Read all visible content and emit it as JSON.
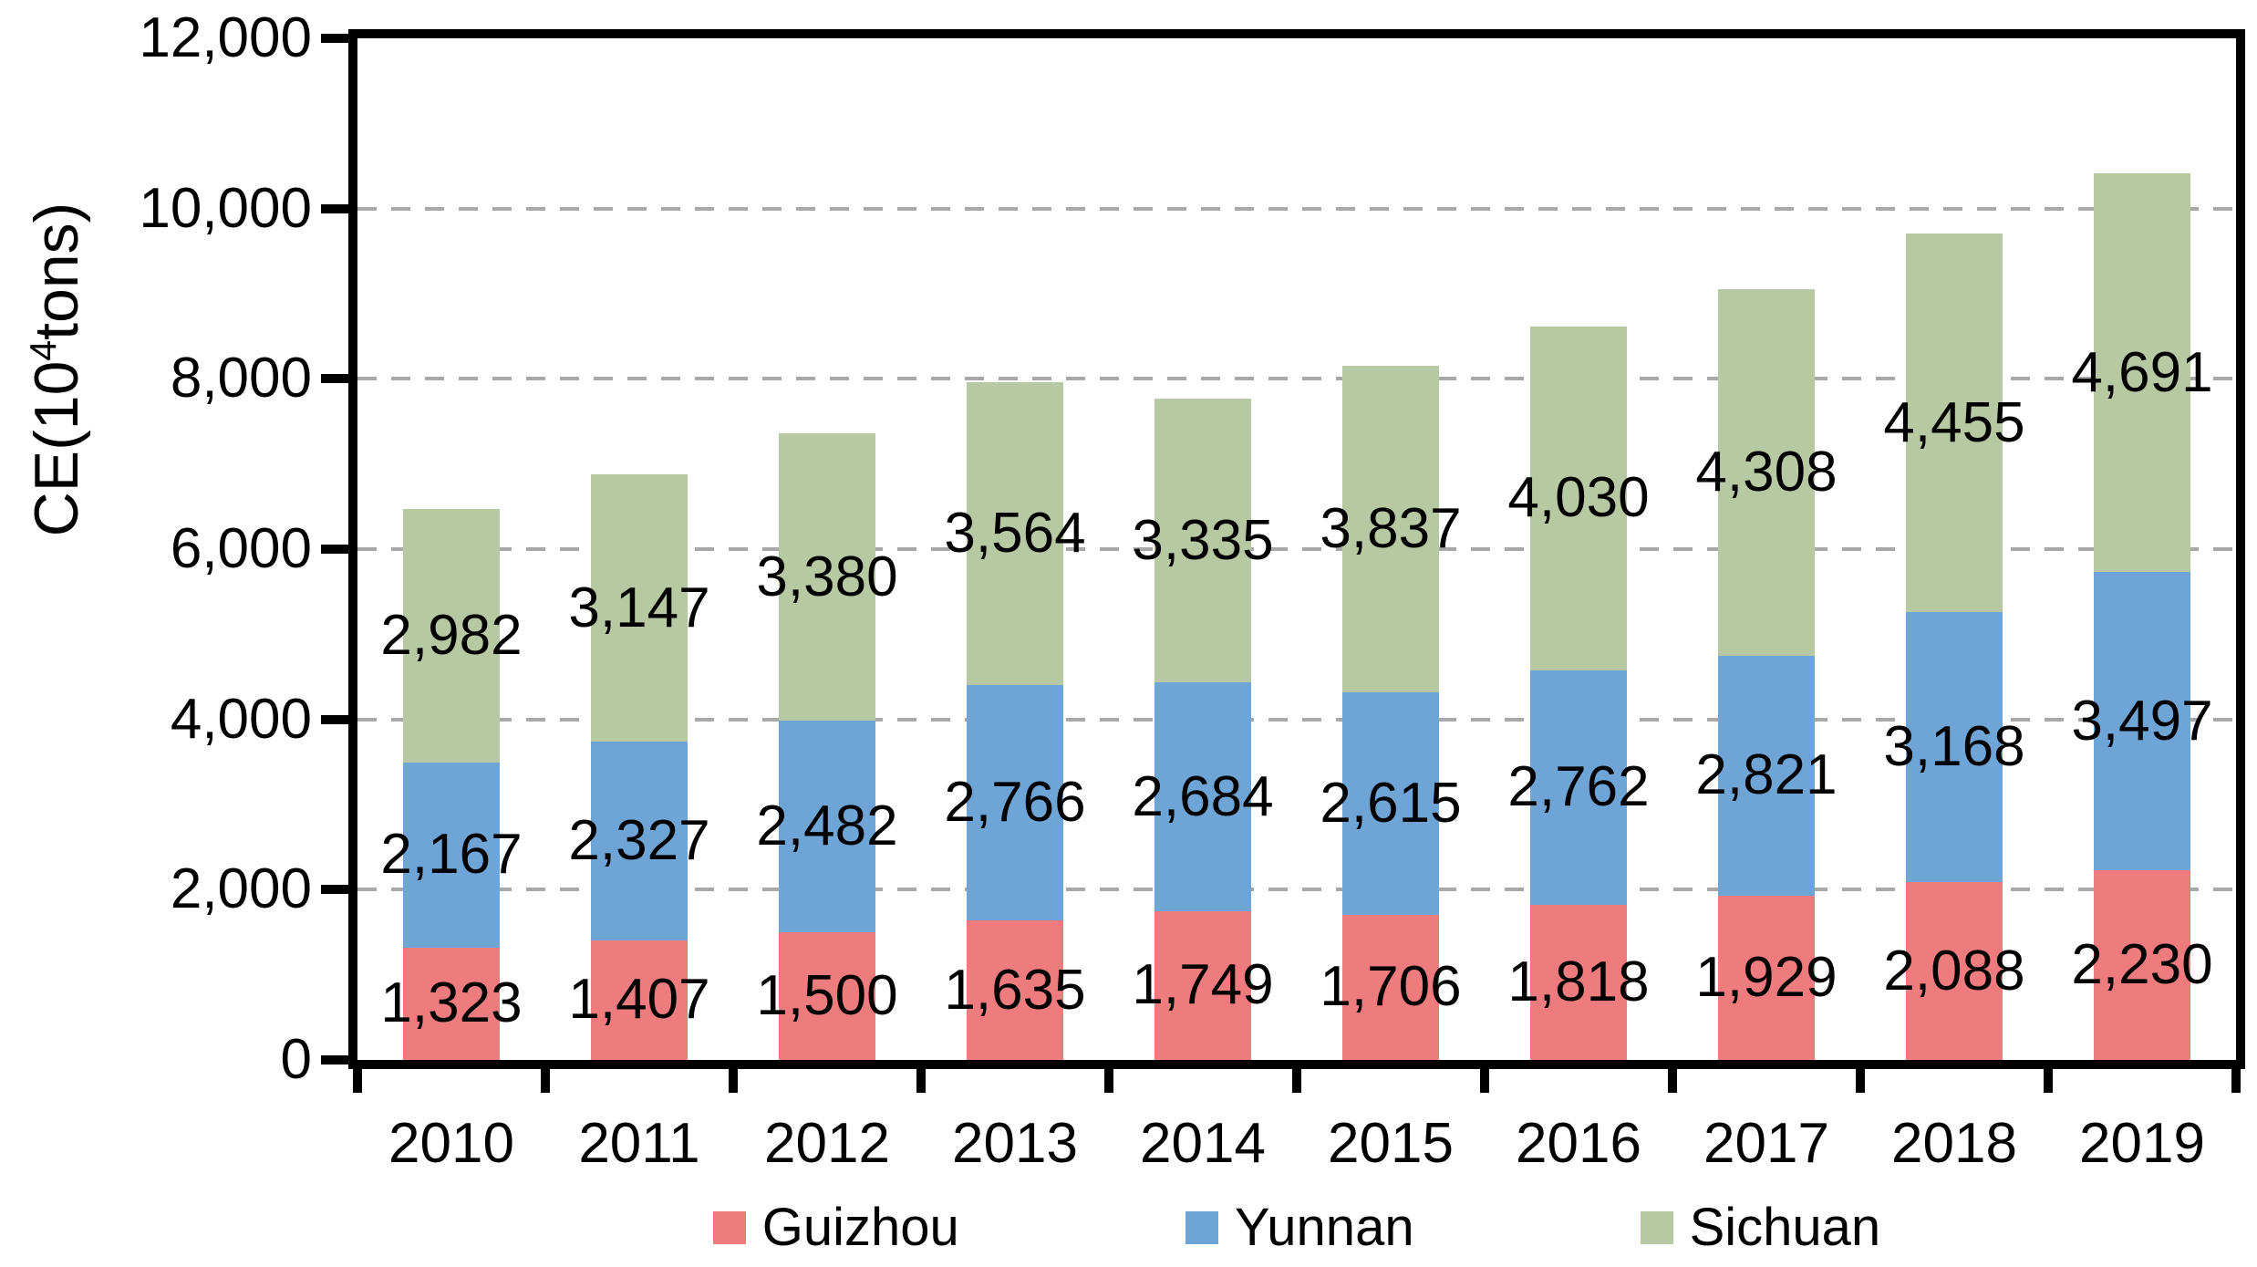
{
  "chart_data": {
    "type": "bar",
    "stacked": true,
    "categories": [
      "2010",
      "2011",
      "2012",
      "2013",
      "2014",
      "2015",
      "2016",
      "2017",
      "2018",
      "2019"
    ],
    "series": [
      {
        "name": "Guizhou",
        "color": "#EE7C7E",
        "values": [
          1323,
          1407,
          1500,
          1635,
          1749,
          1706,
          1818,
          1929,
          2088,
          2230
        ]
      },
      {
        "name": "Yunnan",
        "color": "#6FA5D6",
        "values": [
          2167,
          2327,
          2482,
          2766,
          2684,
          2615,
          2762,
          2821,
          3168,
          3497
        ]
      },
      {
        "name": "Sichuan",
        "color": "#B6C9A2",
        "values": [
          2982,
          3147,
          3380,
          3564,
          3335,
          3837,
          4030,
          4308,
          4455,
          4691
        ]
      }
    ],
    "ylabel_parts": {
      "prefix": "CE(10",
      "sup": "4",
      "suffix": "tons)"
    },
    "ylim": [
      0,
      12000
    ],
    "ytick_step": 2000,
    "ytick_labels": [
      "0",
      "2,000",
      "4,000",
      "6,000",
      "8,000",
      "10,000",
      "12,000"
    ],
    "grid": "horizontal-dashed",
    "legend_position": "bottom",
    "colors": {
      "axis": "#000000",
      "gridline": "#A8A8A8",
      "label_text": "#000000",
      "background": "#FFFFFF"
    }
  }
}
